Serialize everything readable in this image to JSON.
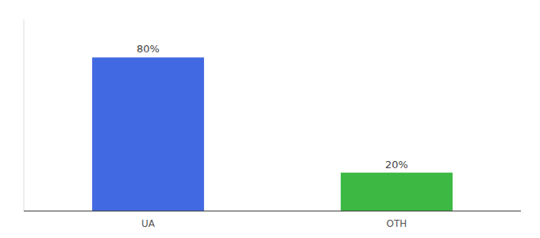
{
  "chart_data": {
    "type": "bar",
    "categories": [
      "UA",
      "OTH"
    ],
    "values": [
      80,
      20
    ],
    "value_labels": [
      "80%",
      "20%"
    ],
    "colors": [
      "#4169e1",
      "#3cb843"
    ],
    "ylim": [
      0,
      100
    ],
    "data_labels": true,
    "tick_labels": "x"
  }
}
